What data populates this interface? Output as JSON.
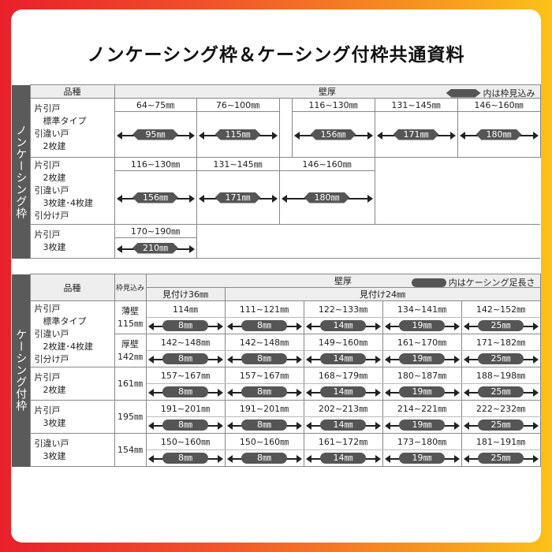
{
  "title": "ノンケーシング枠＆ケーシング付枠共通資料",
  "table1": {
    "side_label": "ノンケーシング枠",
    "col_item": "品種",
    "col_wall": "壁厚",
    "legend": "内は枠見込み",
    "rows": [
      {
        "item": "片引戸\n　標準タイプ\n引違い戸\n　2枚建",
        "cells": [
          {
            "range": "64~75㎜",
            "value": "95㎜"
          },
          {
            "range": "76~100㎜",
            "value": "115㎜"
          },
          {
            "range": "116~130㎜",
            "value": "156㎜"
          },
          {
            "range": "131~145㎜",
            "value": "171㎜"
          },
          {
            "range": "146~160㎜",
            "value": "180㎜"
          }
        ]
      },
      {
        "item": "片引戸\n　2枚建\n引違い戸\n　3枚建･4枚建\n引分け戸",
        "cells": [
          {
            "range": "116~130㎜",
            "value": "156㎜"
          },
          {
            "range": "131~145㎜",
            "value": "171㎜"
          },
          {
            "range": "146~160㎜",
            "value": "180㎜"
          }
        ]
      },
      {
        "item": "片引戸\n　3枚建",
        "cells": [
          {
            "range": "170~190㎜",
            "value": "210㎜"
          }
        ]
      }
    ]
  },
  "table2": {
    "side_label": "ケーシング付枠",
    "col_item": "品種",
    "col_frame": "枠見込み",
    "col_wall": "壁厚",
    "legend": "内はケーシング足長さ",
    "sub36": "見付け36㎜",
    "sub24": "見付け24㎜",
    "rows": [
      {
        "item": "片引戸\n　標準タイプ\n引違い戸\n　2枚建･4枚建\n引分け戸",
        "frame_label": "薄壁",
        "frame": "115㎜",
        "ranges": [
          "114㎜",
          "111~121㎜",
          "122~133㎜",
          "134~141㎜",
          "142~152㎜"
        ],
        "values": [
          "8㎜",
          "8㎜",
          "14㎜",
          "19㎜",
          "25㎜"
        ]
      },
      {
        "frame_label": "厚壁",
        "frame": "142㎜",
        "ranges": [
          "142~148㎜",
          "142~148㎜",
          "149~160㎜",
          "161~170㎜",
          "171~182㎜"
        ],
        "values": [
          "8㎜",
          "8㎜",
          "14㎜",
          "19㎜",
          "25㎜"
        ]
      },
      {
        "item": "片引戸\n　2枚建",
        "frame": "161㎜",
        "ranges": [
          "157~167㎜",
          "157~167㎜",
          "168~179㎜",
          "180~187㎜",
          "188~198㎜"
        ],
        "values": [
          "8㎜",
          "8㎜",
          "14㎜",
          "19㎜",
          "25㎜"
        ]
      },
      {
        "item": "片引戸\n　3枚建",
        "frame": "195㎜",
        "ranges": [
          "191~201㎜",
          "191~201㎜",
          "202~213㎜",
          "214~221㎜",
          "222~232㎜"
        ],
        "values": [
          "8㎜",
          "8㎜",
          "14㎜",
          "19㎜",
          "25㎜"
        ]
      },
      {
        "item": "引違い戸\n　3枚建",
        "frame": "154㎜",
        "ranges": [
          "150~160㎜",
          "150~160㎜",
          "161~172㎜",
          "173~180㎜",
          "181~191㎜"
        ],
        "values": [
          "8㎜",
          "8㎜",
          "14㎜",
          "19㎜",
          "25㎜"
        ]
      }
    ]
  }
}
